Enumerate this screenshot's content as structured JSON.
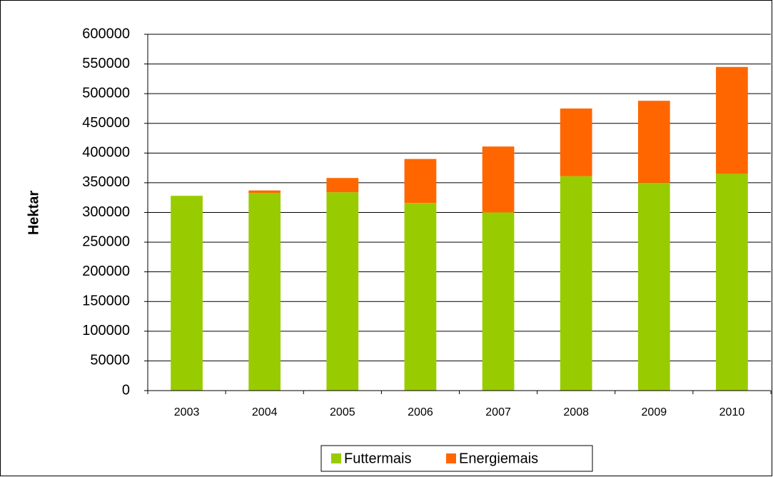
{
  "chart_data": {
    "type": "stacked_bar",
    "y_label": "Hektar",
    "categories": [
      "2003",
      "2004",
      "2005",
      "2006",
      "2007",
      "2008",
      "2009",
      "2010"
    ],
    "series": [
      {
        "name": "Futtermais",
        "color": "#99cc00",
        "values": [
          328000,
          333000,
          334000,
          316000,
          300000,
          361000,
          350000,
          365000
        ]
      },
      {
        "name": "Energiemais",
        "color": "#ff6600",
        "values": [
          0,
          4000,
          24000,
          74000,
          111000,
          114000,
          138000,
          180000
        ]
      }
    ],
    "ylim": [
      0,
      600000
    ],
    "yticks": [
      0,
      50000,
      100000,
      150000,
      200000,
      250000,
      300000,
      350000,
      400000,
      450000,
      500000,
      550000,
      600000
    ],
    "grid": true,
    "legend": "bottom"
  }
}
